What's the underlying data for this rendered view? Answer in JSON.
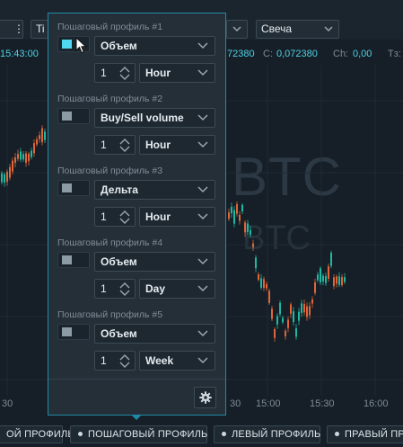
{
  "toolbar": {
    "dots_label": "⋮",
    "timeframe_partial": "Ti",
    "chart_type_label": "Свеча"
  },
  "inforow": {
    "time_partial": "15:43:00",
    "price_partial": "72380",
    "close_label": "C:",
    "close_value": "0,072380",
    "change_label": "Ch:",
    "change_value": "0,00",
    "trailing_partial": "Тз:"
  },
  "watermark": {
    "line1": "BTC",
    "line2": "BTC"
  },
  "xaxis": {
    "labels": [
      "30",
      "30",
      "15:00",
      "15:30",
      "16:00"
    ]
  },
  "bottombar": {
    "tabs": [
      "ОЙ ПРОФИЛЬ",
      "ПОШАГОВЫЙ ПРОФИЛЬ",
      "ЛЕВЫЙ ПРОФИЛЬ",
      "ПРАВЫЙ ПРОФИЛ"
    ]
  },
  "popup": {
    "sections": [
      {
        "title": "Пошаговый профиль #1",
        "enabled": true,
        "type": "Объем",
        "count": "1",
        "period": "Hour"
      },
      {
        "title": "Пошаговый профиль #2",
        "enabled": false,
        "type": "Buy/Sell volume",
        "count": "1",
        "period": "Hour"
      },
      {
        "title": "Пошаговый профиль #3",
        "enabled": false,
        "type": "Дельта",
        "count": "1",
        "period": "Hour"
      },
      {
        "title": "Пошаговый профиль #4",
        "enabled": false,
        "type": "Объем",
        "count": "1",
        "period": "Day"
      },
      {
        "title": "Пошаговый профиль #5",
        "enabled": false,
        "type": "Объем",
        "count": "1",
        "period": "Week"
      }
    ]
  },
  "colors": {
    "accent": "#4fd8ef",
    "candle_up": "#1fb8a0",
    "candle_down": "#e0663a"
  }
}
